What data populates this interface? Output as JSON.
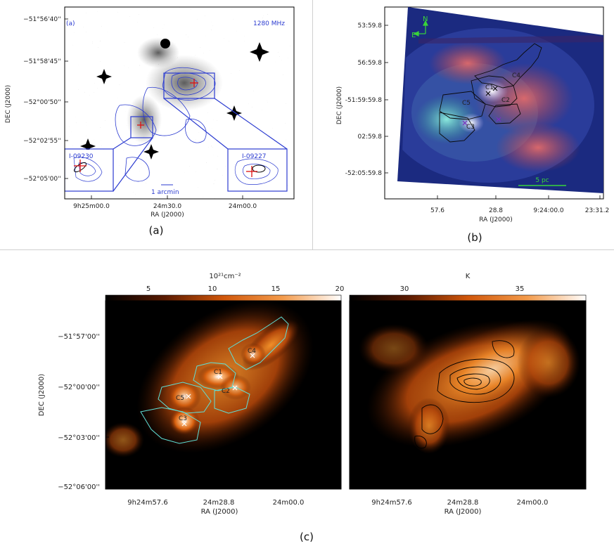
{
  "panel_a": {
    "label": "(a)",
    "corner_tag": "(a)",
    "freq": "1280 MHz",
    "dec_ticks": [
      "−51°56'40''",
      "−51°58'45''",
      "−52°00'50''",
      "−52°02'55''",
      "−52°05'00''"
    ],
    "ra_ticks": [
      "9h25m00.0",
      "24m30.0",
      "24m00.0"
    ],
    "xlabel": "RA (J2000)",
    "ylabel": "DEC (J2000)",
    "inset_left": "I-09230",
    "inset_right": "I-09227",
    "scalebar": "1 arcmin"
  },
  "panel_b": {
    "label": "(b)",
    "dec_ticks": [
      "53:59.8",
      "56:59.8",
      "-51:59:59.8",
      "02:59.8",
      "-52:05:59.8"
    ],
    "ra_ticks": [
      "57.6",
      "28.8",
      "9:24:00.0",
      "23:31.2"
    ],
    "xlabel": "RA (J2000)",
    "ylabel": "DEC (J2000)",
    "compass_n": "N",
    "compass_e": "E",
    "clumps": [
      "C4",
      "C1",
      "C5",
      "C2",
      "C3"
    ],
    "scalebar": "5 pc"
  },
  "panel_c": {
    "label": "(c)",
    "left": {
      "colorbar_unit": "10²¹cm⁻²",
      "colorbar_ticks": [
        "5",
        "10",
        "15",
        "20"
      ],
      "dec_ticks": [
        "−51°57'00''",
        "−52°00'00''",
        "−52°03'00''",
        "−52°06'00''"
      ],
      "ra_ticks": [
        "9h24m57.6",
        "24m28.8",
        "24m00.0"
      ],
      "xlabel": "RA (J2000)",
      "ylabel": "DEC (J2000)",
      "clumps": [
        "C4",
        "C1",
        "C2",
        "C5",
        "C3"
      ]
    },
    "right": {
      "colorbar_unit": "K",
      "colorbar_ticks": [
        "30",
        "35"
      ],
      "ra_ticks": [
        "9h24m57.6",
        "24m28.8",
        "24m00.0"
      ],
      "xlabel": "RA (J2000)"
    }
  }
}
